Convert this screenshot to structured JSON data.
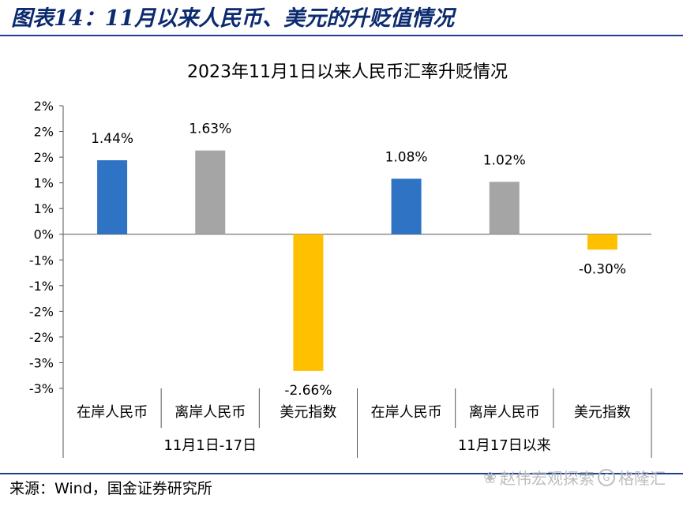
{
  "figure": {
    "title": "图表14：11月以来人民币、美元的升贬值情况",
    "source": "来源：Wind，国金证券研究所",
    "watermark": "赵伟宏观探索",
    "watermark_logo": "格隆汇"
  },
  "chart_data": {
    "type": "bar",
    "title": "2023年11月1日以来人民币汇率升贬情况",
    "categories": [
      "在岸人民币",
      "离岸人民币",
      "美元指数",
      "在岸人民币",
      "离岸人民币",
      "美元指数"
    ],
    "groups": [
      {
        "label": "11月1日-17日",
        "categories": [
          "在岸人民币",
          "离岸人民币",
          "美元指数"
        ]
      },
      {
        "label": "11月17日以来",
        "categories": [
          "在岸人民币",
          "离岸人民币",
          "美元指数"
        ]
      }
    ],
    "values": [
      1.44,
      1.63,
      -2.66,
      1.08,
      1.02,
      -0.3
    ],
    "data_labels": [
      "1.44%",
      "1.63%",
      "-2.66%",
      "1.08%",
      "1.02%",
      "-0.30%"
    ],
    "colors": [
      "#2e73c4",
      "#a5a5a5",
      "#ffc000",
      "#2e73c4",
      "#a5a5a5",
      "#ffc000"
    ],
    "y_ticks": [
      -3,
      -2.5,
      -2,
      -1.5,
      -1,
      -0.5,
      0,
      0.5,
      1,
      1.5,
      2,
      2.5
    ],
    "y_tick_labels": [
      "-3%",
      "-3%",
      "-2%",
      "-2%",
      "-1%",
      "-1%",
      "0%",
      "1%",
      "1%",
      "2%",
      "2%",
      "2%"
    ],
    "ylim": [
      -3,
      2.5
    ],
    "xlabel": "",
    "ylabel": "",
    "grid": false
  }
}
